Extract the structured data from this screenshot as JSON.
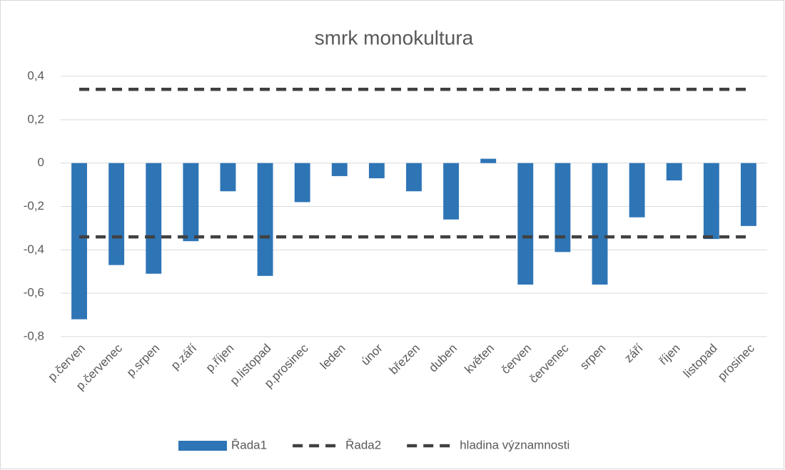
{
  "chart_data": {
    "type": "bar",
    "title": "smrk monokultura",
    "categories": [
      "p.červen",
      "p.červenec",
      "p.srpen",
      "p.září",
      "p.říjen",
      "p.listopad",
      "p.prosinec",
      "leden",
      "únor",
      "březen",
      "duben",
      "květen",
      "červen",
      "červenec",
      "srpen",
      "září",
      "říjen",
      "listopad",
      "prosinec"
    ],
    "series": [
      {
        "name": "Řada1",
        "type": "bar",
        "color": "#2e75b6",
        "values": [
          -0.72,
          -0.47,
          -0.51,
          -0.36,
          -0.13,
          -0.52,
          -0.18,
          -0.06,
          -0.07,
          -0.13,
          -0.26,
          0.02,
          -0.56,
          -0.41,
          -0.56,
          -0.25,
          -0.08,
          -0.35,
          -0.29
        ]
      },
      {
        "name": "Řada2",
        "type": "line",
        "dashed": true,
        "color": "#404040",
        "values": [
          0.34,
          0.34,
          0.34,
          0.34,
          0.34,
          0.34,
          0.34,
          0.34,
          0.34,
          0.34,
          0.34,
          0.34,
          0.34,
          0.34,
          0.34,
          0.34,
          0.34,
          0.34,
          0.34
        ]
      },
      {
        "name": "hladina významnosti",
        "type": "line",
        "dashed": true,
        "color": "#404040",
        "values": [
          -0.34,
          -0.34,
          -0.34,
          -0.34,
          -0.34,
          -0.34,
          -0.34,
          -0.34,
          -0.34,
          -0.34,
          -0.34,
          -0.34,
          -0.34,
          -0.34,
          -0.34,
          -0.34,
          -0.34,
          -0.34,
          -0.34
        ]
      }
    ],
    "ylim": [
      -0.8,
      0.4
    ],
    "yticks": [
      {
        "value": -0.8,
        "label": "-0,8"
      },
      {
        "value": -0.6,
        "label": "-0,6"
      },
      {
        "value": -0.4,
        "label": "-0,4"
      },
      {
        "value": -0.2,
        "label": "-0,2"
      },
      0,
      {
        "value": 0.2,
        "label": "0,2"
      },
      {
        "value": 0.4,
        "label": "0,4"
      }
    ],
    "grid": true,
    "legend": "bottom"
  }
}
